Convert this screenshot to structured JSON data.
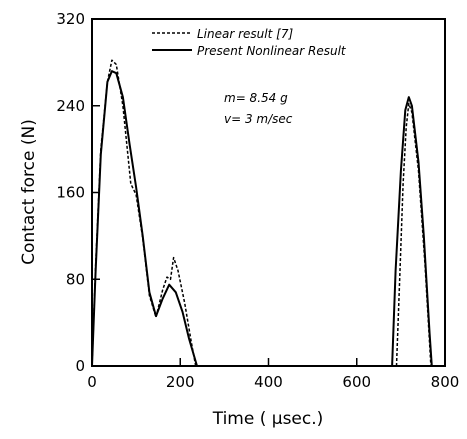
{
  "chart_data": {
    "type": "line",
    "xlabel": "Time ( μsec.)",
    "ylabel": "Contact force (N)",
    "xlim": [
      0,
      800
    ],
    "ylim": [
      0,
      320
    ],
    "xticks": [
      0,
      200,
      400,
      600,
      800
    ],
    "yticks": [
      0,
      80,
      160,
      240,
      320
    ],
    "grid": false,
    "legend_position": "top-center",
    "annotations": [
      "m= 8.54 g",
      "v= 3 m/sec"
    ],
    "series": [
      {
        "name": "Linear result [7]",
        "style": "dashed",
        "segments": [
          [
            [
              0,
              0
            ],
            [
              8,
              90
            ],
            [
              20,
              200
            ],
            [
              35,
              262
            ],
            [
              45,
              282
            ],
            [
              55,
              278
            ],
            [
              70,
              240
            ],
            [
              88,
              168
            ],
            [
              100,
              158
            ],
            [
              115,
              118
            ],
            [
              130,
              65
            ],
            [
              145,
              45
            ],
            [
              160,
              70
            ],
            [
              170,
              82
            ],
            [
              178,
              80
            ],
            [
              185,
              100
            ],
            [
              195,
              88
            ],
            [
              210,
              58
            ],
            [
              225,
              22
            ],
            [
              235,
              0
            ]
          ],
          [
            [
              690,
              0
            ],
            [
              698,
              88
            ],
            [
              705,
              168
            ],
            [
              712,
              220
            ],
            [
              718,
              242
            ],
            [
              725,
              234
            ],
            [
              740,
              180
            ],
            [
              755,
              92
            ],
            [
              768,
              0
            ]
          ]
        ]
      },
      {
        "name": "Present Nonlinear Result",
        "style": "solid",
        "segments": [
          [
            [
              0,
              0
            ],
            [
              8,
              85
            ],
            [
              20,
              195
            ],
            [
              35,
              262
            ],
            [
              45,
              272
            ],
            [
              55,
              270
            ],
            [
              70,
              248
            ],
            [
              85,
              205
            ],
            [
              100,
              165
            ],
            [
              115,
              120
            ],
            [
              130,
              68
            ],
            [
              145,
              46
            ],
            [
              160,
              62
            ],
            [
              175,
              75
            ],
            [
              190,
              68
            ],
            [
              205,
              50
            ],
            [
              220,
              25
            ],
            [
              238,
              0
            ]
          ],
          [
            [
              680,
              0
            ],
            [
              688,
              88
            ],
            [
              700,
              180
            ],
            [
              710,
              236
            ],
            [
              718,
              248
            ],
            [
              725,
              240
            ],
            [
              740,
              188
            ],
            [
              752,
              120
            ],
            [
              765,
              30
            ],
            [
              770,
              0
            ]
          ]
        ]
      }
    ]
  }
}
